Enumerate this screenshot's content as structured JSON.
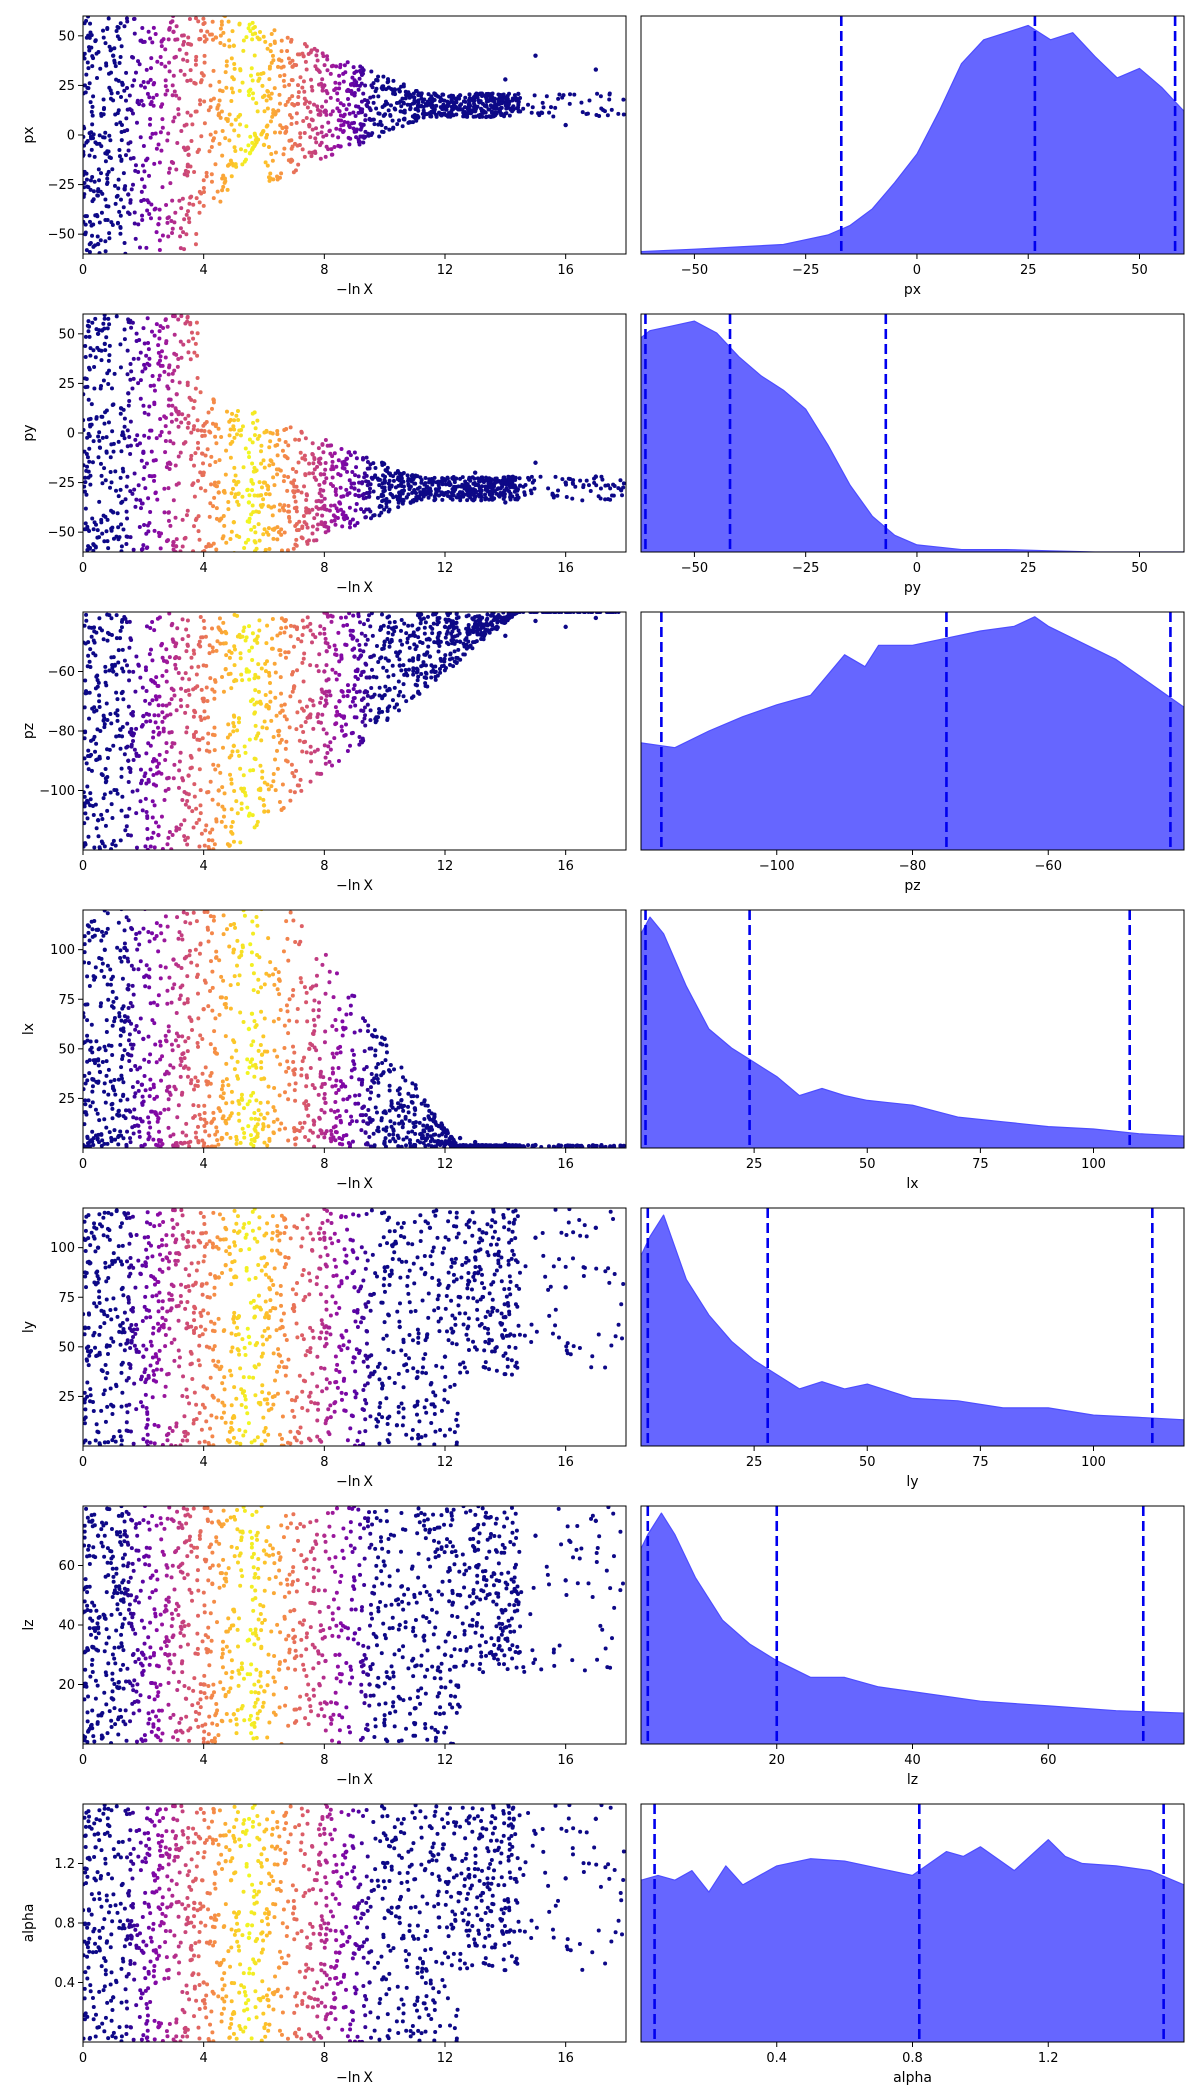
{
  "figure": {
    "xlabel_trace": "−ln X",
    "colors": {
      "posterior_fill": "#6666ff",
      "posterior_edge": "#4d4dff",
      "quantile_line": "#0000ee",
      "axes": "#000000"
    }
  },
  "chart_data": [
    {
      "type": "scatter",
      "param": "px",
      "ylabel": "px",
      "xlabel": "−ln X",
      "xlim": [
        0,
        18
      ],
      "ylim": [
        -60,
        60
      ],
      "xticks": [
        0,
        4,
        8,
        12,
        16
      ],
      "yticks": [
        -50,
        -25,
        0,
        25,
        50
      ],
      "colormap": "plasma",
      "color_peak_x": 5.5,
      "points": [
        [
          0.5,
          -55
        ],
        [
          1,
          40
        ],
        [
          1.5,
          -30
        ],
        [
          2,
          15
        ],
        [
          2.5,
          -45
        ],
        [
          3,
          52
        ],
        [
          3.5,
          -10
        ],
        [
          4,
          30
        ],
        [
          4.5,
          10
        ],
        [
          5,
          45
        ],
        [
          5.5,
          22
        ],
        [
          6,
          -5
        ],
        [
          6.5,
          38
        ],
        [
          7,
          15
        ],
        [
          7.5,
          5
        ],
        [
          8,
          25
        ],
        [
          8.5,
          12
        ],
        [
          9,
          20
        ],
        [
          9.5,
          8
        ],
        [
          10,
          15
        ],
        [
          10.5,
          22
        ],
        [
          11,
          10
        ],
        [
          11.5,
          18
        ],
        [
          12,
          14
        ],
        [
          12.5,
          20
        ],
        [
          13,
          12
        ],
        [
          14,
          28
        ],
        [
          15,
          40
        ],
        [
          16,
          5
        ],
        [
          17,
          33
        ]
      ]
    },
    {
      "type": "area",
      "param": "px",
      "xlabel": "px",
      "xlim": [
        -62,
        60
      ],
      "ylim": [
        0,
        1
      ],
      "xticks": [
        -50,
        -25,
        0,
        25,
        50
      ],
      "x": [
        -62,
        -50,
        -40,
        -30,
        -25,
        -20,
        -15,
        -10,
        -5,
        0,
        5,
        10,
        15,
        20,
        25,
        30,
        35,
        40,
        45,
        50,
        55,
        60
      ],
      "density": [
        0.01,
        0.02,
        0.03,
        0.04,
        0.06,
        0.08,
        0.12,
        0.19,
        0.3,
        0.42,
        0.6,
        0.8,
        0.9,
        0.93,
        0.96,
        0.9,
        0.93,
        0.83,
        0.74,
        0.78,
        0.7,
        0.6
      ],
      "quantiles": [
        -17,
        26.5,
        58
      ]
    },
    {
      "type": "scatter",
      "param": "py",
      "ylabel": "py",
      "xlabel": "−ln X",
      "xlim": [
        0,
        18
      ],
      "ylim": [
        -60,
        60
      ],
      "xticks": [
        0,
        4,
        8,
        12,
        16
      ],
      "yticks": [
        -50,
        -25,
        0,
        25,
        50
      ],
      "colormap": "plasma",
      "color_peak_x": 5.5,
      "points": [
        [
          0.5,
          50
        ],
        [
          1,
          -40
        ],
        [
          1.5,
          20
        ],
        [
          2,
          -10
        ],
        [
          2.5,
          35
        ],
        [
          3,
          -55
        ],
        [
          3.5,
          5
        ],
        [
          4,
          -20
        ],
        [
          4.5,
          -30
        ],
        [
          5,
          -45
        ],
        [
          5.5,
          -35
        ],
        [
          6,
          -25
        ],
        [
          6.5,
          -50
        ],
        [
          7,
          -30
        ],
        [
          7.5,
          -40
        ],
        [
          8,
          -25
        ],
        [
          8.5,
          -35
        ],
        [
          9,
          -28
        ],
        [
          9.5,
          -30
        ],
        [
          10,
          -25
        ],
        [
          10.5,
          -32
        ],
        [
          11,
          -22
        ],
        [
          11.5,
          -28
        ],
        [
          12,
          -24
        ],
        [
          12.5,
          -30
        ],
        [
          13,
          -20
        ],
        [
          14,
          -35
        ],
        [
          15,
          -15
        ],
        [
          16,
          -25
        ],
        [
          17,
          -22
        ]
      ]
    },
    {
      "type": "area",
      "param": "py",
      "xlabel": "py",
      "xlim": [
        -62,
        60
      ],
      "ylim": [
        0,
        1
      ],
      "xticks": [
        -50,
        -25,
        0,
        25,
        50
      ],
      "x": [
        -62,
        -60,
        -55,
        -50,
        -45,
        -40,
        -35,
        -30,
        -25,
        -20,
        -15,
        -10,
        -5,
        0,
        5,
        10,
        20,
        30,
        40,
        50,
        60
      ],
      "density": [
        0.9,
        0.93,
        0.95,
        0.97,
        0.92,
        0.82,
        0.74,
        0.68,
        0.6,
        0.45,
        0.28,
        0.15,
        0.07,
        0.03,
        0.02,
        0.01,
        0.01,
        0.005,
        0.0,
        0.0,
        0.0
      ],
      "quantiles": [
        -61,
        -42,
        -7
      ]
    },
    {
      "type": "scatter",
      "param": "pz",
      "ylabel": "pz",
      "xlabel": "−ln X",
      "xlim": [
        0,
        18
      ],
      "ylim": [
        -120,
        -40
      ],
      "xticks": [
        0,
        4,
        8,
        12,
        16
      ],
      "yticks": [
        -100,
        -80,
        -60
      ],
      "colormap": "plasma",
      "color_peak_x": 5.5,
      "points": [
        [
          0.5,
          -110
        ],
        [
          1,
          -60
        ],
        [
          1.5,
          -90
        ],
        [
          2,
          -75
        ],
        [
          2.5,
          -115
        ],
        [
          3,
          -50
        ],
        [
          3.5,
          -95
        ],
        [
          4,
          -70
        ],
        [
          4.5,
          -100
        ],
        [
          5,
          -85
        ],
        [
          5.5,
          -60
        ],
        [
          6,
          -105
        ],
        [
          6.5,
          -80
        ],
        [
          7,
          -65
        ],
        [
          7.5,
          -75
        ],
        [
          8,
          -60
        ],
        [
          8.5,
          -70
        ],
        [
          9,
          -55
        ],
        [
          9.5,
          -62
        ],
        [
          10,
          -50
        ],
        [
          10.5,
          -58
        ],
        [
          11,
          -48
        ],
        [
          11.5,
          -55
        ],
        [
          12,
          -45
        ],
        [
          12.5,
          -50
        ],
        [
          13,
          -44
        ],
        [
          14,
          -48
        ],
        [
          15,
          -43
        ],
        [
          16,
          -45
        ],
        [
          17,
          -42
        ]
      ]
    },
    {
      "type": "area",
      "param": "pz",
      "xlabel": "pz",
      "xlim": [
        -120,
        -40
      ],
      "ylim": [
        0,
        1
      ],
      "xticks": [
        -100,
        -80,
        -60
      ],
      "x": [
        -120,
        -115,
        -110,
        -105,
        -100,
        -95,
        -90,
        -87,
        -85,
        -80,
        -75,
        -70,
        -65,
        -62,
        -60,
        -55,
        -50,
        -45,
        -40
      ],
      "density": [
        0.45,
        0.43,
        0.5,
        0.56,
        0.61,
        0.65,
        0.82,
        0.77,
        0.86,
        0.86,
        0.89,
        0.92,
        0.94,
        0.98,
        0.94,
        0.87,
        0.8,
        0.7,
        0.6
      ],
      "quantiles": [
        -117,
        -75,
        -42
      ]
    },
    {
      "type": "scatter",
      "param": "lx",
      "ylabel": "lx",
      "xlabel": "−ln X",
      "xlim": [
        0,
        18
      ],
      "ylim": [
        0,
        120
      ],
      "xticks": [
        0,
        4,
        8,
        12,
        16
      ],
      "yticks": [
        25,
        50,
        75,
        100
      ],
      "colormap": "plasma",
      "color_peak_x": 5.5,
      "points": [
        [
          0.5,
          110
        ],
        [
          1,
          30
        ],
        [
          1.5,
          80
        ],
        [
          2,
          55
        ],
        [
          2.5,
          15
        ],
        [
          3,
          95
        ],
        [
          3.5,
          40
        ],
        [
          4,
          70
        ],
        [
          4.5,
          20
        ],
        [
          5,
          100
        ],
        [
          5.5,
          60
        ],
        [
          6,
          35
        ],
        [
          6.5,
          85
        ],
        [
          7,
          10
        ],
        [
          7.5,
          50
        ],
        [
          8,
          25
        ],
        [
          8.5,
          70
        ],
        [
          9,
          40
        ],
        [
          9.5,
          15
        ],
        [
          10,
          55
        ],
        [
          10.5,
          30
        ],
        [
          11,
          20
        ],
        [
          11.5,
          10
        ],
        [
          12,
          8
        ],
        [
          12.5,
          5
        ],
        [
          13,
          3
        ],
        [
          14,
          2
        ],
        [
          15,
          1.5
        ],
        [
          16,
          1
        ],
        [
          17,
          1
        ]
      ]
    },
    {
      "type": "area",
      "param": "lx",
      "xlabel": "lx",
      "xlim": [
        0,
        120
      ],
      "ylim": [
        0,
        1
      ],
      "xticks": [
        25,
        50,
        75,
        100
      ],
      "x": [
        0,
        2,
        5,
        10,
        15,
        20,
        25,
        30,
        35,
        40,
        45,
        50,
        60,
        70,
        80,
        90,
        100,
        110,
        120
      ],
      "density": [
        0.9,
        0.97,
        0.9,
        0.68,
        0.5,
        0.42,
        0.36,
        0.3,
        0.22,
        0.25,
        0.22,
        0.2,
        0.18,
        0.13,
        0.11,
        0.09,
        0.08,
        0.06,
        0.05
      ],
      "quantiles": [
        1,
        24,
        108
      ]
    },
    {
      "type": "scatter",
      "param": "ly",
      "ylabel": "ly",
      "xlabel": "−ln X",
      "xlim": [
        0,
        18
      ],
      "ylim": [
        0,
        120
      ],
      "xticks": [
        0,
        4,
        8,
        12,
        16
      ],
      "yticks": [
        25,
        50,
        75,
        100
      ],
      "colormap": "plasma",
      "color_peak_x": 5.5,
      "points": [
        [
          0.5,
          100
        ],
        [
          1,
          20
        ],
        [
          1.5,
          75
        ],
        [
          2,
          45
        ],
        [
          2.5,
          10
        ],
        [
          3,
          110
        ],
        [
          3.5,
          60
        ],
        [
          4,
          30
        ],
        [
          4.5,
          85
        ],
        [
          5,
          15
        ],
        [
          5.5,
          55
        ],
        [
          6,
          95
        ],
        [
          6.5,
          40
        ],
        [
          7,
          70
        ],
        [
          7.5,
          25
        ],
        [
          8,
          105
        ],
        [
          8.5,
          50
        ],
        [
          9,
          80
        ],
        [
          9.5,
          35
        ],
        [
          10,
          90
        ],
        [
          10.5,
          60
        ],
        [
          11,
          20
        ],
        [
          11.5,
          110
        ],
        [
          12,
          45
        ],
        [
          12.5,
          75
        ],
        [
          13,
          95
        ],
        [
          14,
          65
        ],
        [
          15,
          105
        ],
        [
          16,
          80
        ],
        [
          17,
          110
        ]
      ]
    },
    {
      "type": "area",
      "param": "ly",
      "xlabel": "ly",
      "xlim": [
        0,
        120
      ],
      "ylim": [
        0,
        1
      ],
      "xticks": [
        25,
        50,
        75,
        100
      ],
      "x": [
        0,
        2,
        5,
        10,
        15,
        20,
        25,
        30,
        35,
        40,
        45,
        50,
        60,
        70,
        80,
        90,
        100,
        110,
        120
      ],
      "density": [
        0.8,
        0.88,
        0.97,
        0.7,
        0.55,
        0.44,
        0.36,
        0.3,
        0.24,
        0.27,
        0.24,
        0.26,
        0.2,
        0.19,
        0.16,
        0.16,
        0.13,
        0.12,
        0.11
      ],
      "quantiles": [
        1.5,
        28,
        113
      ]
    },
    {
      "type": "scatter",
      "param": "lz",
      "ylabel": "lz",
      "xlabel": "−ln X",
      "xlim": [
        0,
        18
      ],
      "ylim": [
        0,
        80
      ],
      "xticks": [
        0,
        4,
        8,
        12,
        16
      ],
      "yticks": [
        20,
        40,
        60
      ],
      "colormap": "plasma",
      "color_peak_x": 5.5,
      "points": [
        [
          0.5,
          70
        ],
        [
          1,
          15
        ],
        [
          1.5,
          50
        ],
        [
          2,
          30
        ],
        [
          2.5,
          5
        ],
        [
          3,
          75
        ],
        [
          3.5,
          40
        ],
        [
          4,
          20
        ],
        [
          4.5,
          60
        ],
        [
          5,
          10
        ],
        [
          5.5,
          35
        ],
        [
          6,
          65
        ],
        [
          6.5,
          25
        ],
        [
          7,
          45
        ],
        [
          7.5,
          15
        ],
        [
          8,
          70
        ],
        [
          8.5,
          30
        ],
        [
          9,
          55
        ],
        [
          9.5,
          20
        ],
        [
          10,
          60
        ],
        [
          10.5,
          40
        ],
        [
          11,
          12
        ],
        [
          11.5,
          72
        ],
        [
          12,
          30
        ],
        [
          12.5,
          50
        ],
        [
          13,
          65
        ],
        [
          14,
          45
        ],
        [
          15,
          70
        ],
        [
          16,
          55
        ],
        [
          17,
          75
        ]
      ]
    },
    {
      "type": "area",
      "param": "lz",
      "xlabel": "lz",
      "xlim": [
        0,
        80
      ],
      "ylim": [
        0,
        1
      ],
      "xticks": [
        20,
        40,
        60
      ],
      "x": [
        0,
        1,
        3,
        5,
        8,
        12,
        16,
        20,
        25,
        30,
        35,
        40,
        50,
        60,
        70,
        80
      ],
      "density": [
        0.82,
        0.88,
        0.97,
        0.88,
        0.7,
        0.52,
        0.42,
        0.35,
        0.28,
        0.28,
        0.24,
        0.22,
        0.18,
        0.16,
        0.14,
        0.13
      ],
      "quantiles": [
        1,
        20,
        74
      ]
    },
    {
      "type": "scatter",
      "param": "alpha",
      "ylabel": "alpha",
      "xlabel": "−ln X",
      "xlim": [
        0,
        18
      ],
      "ylim": [
        0,
        1.6
      ],
      "xticks": [
        0,
        4,
        8,
        12,
        16
      ],
      "yticks": [
        0.4,
        0.8,
        1.2
      ],
      "colormap": "plasma",
      "color_peak_x": 5.5,
      "points": [
        [
          0.5,
          1.4
        ],
        [
          1,
          0.3
        ],
        [
          1.5,
          1.0
        ],
        [
          2,
          0.6
        ],
        [
          2.5,
          0.1
        ],
        [
          3,
          1.5
        ],
        [
          3.5,
          0.8
        ],
        [
          4,
          0.4
        ],
        [
          4.5,
          1.2
        ],
        [
          5,
          0.2
        ],
        [
          5.5,
          0.7
        ],
        [
          6,
          1.3
        ],
        [
          6.5,
          0.5
        ],
        [
          7,
          0.9
        ],
        [
          7.5,
          0.3
        ],
        [
          8,
          1.4
        ],
        [
          8.5,
          0.6
        ],
        [
          9,
          1.1
        ],
        [
          9.5,
          0.4
        ],
        [
          10,
          1.2
        ],
        [
          10.5,
          0.8
        ],
        [
          11,
          0.25
        ],
        [
          11.5,
          1.45
        ],
        [
          12,
          0.6
        ],
        [
          12.5,
          1.0
        ],
        [
          13,
          1.3
        ],
        [
          14,
          0.9
        ],
        [
          15,
          1.4
        ],
        [
          16,
          1.1
        ],
        [
          17,
          1.5
        ]
      ]
    },
    {
      "type": "area",
      "param": "alpha",
      "xlabel": "alpha",
      "xlim": [
        0,
        1.6
      ],
      "ylim": [
        0,
        1
      ],
      "xticks": [
        0.4,
        0.8,
        1.2
      ],
      "x": [
        0,
        0.05,
        0.1,
        0.15,
        0.2,
        0.25,
        0.3,
        0.4,
        0.5,
        0.6,
        0.7,
        0.8,
        0.9,
        0.95,
        1.0,
        1.1,
        1.2,
        1.25,
        1.3,
        1.4,
        1.5,
        1.6
      ],
      "density": [
        0.68,
        0.7,
        0.68,
        0.72,
        0.63,
        0.74,
        0.66,
        0.74,
        0.77,
        0.76,
        0.73,
        0.7,
        0.8,
        0.78,
        0.82,
        0.72,
        0.85,
        0.78,
        0.75,
        0.74,
        0.72,
        0.66
      ],
      "quantiles": [
        0.04,
        0.82,
        1.54
      ]
    }
  ]
}
